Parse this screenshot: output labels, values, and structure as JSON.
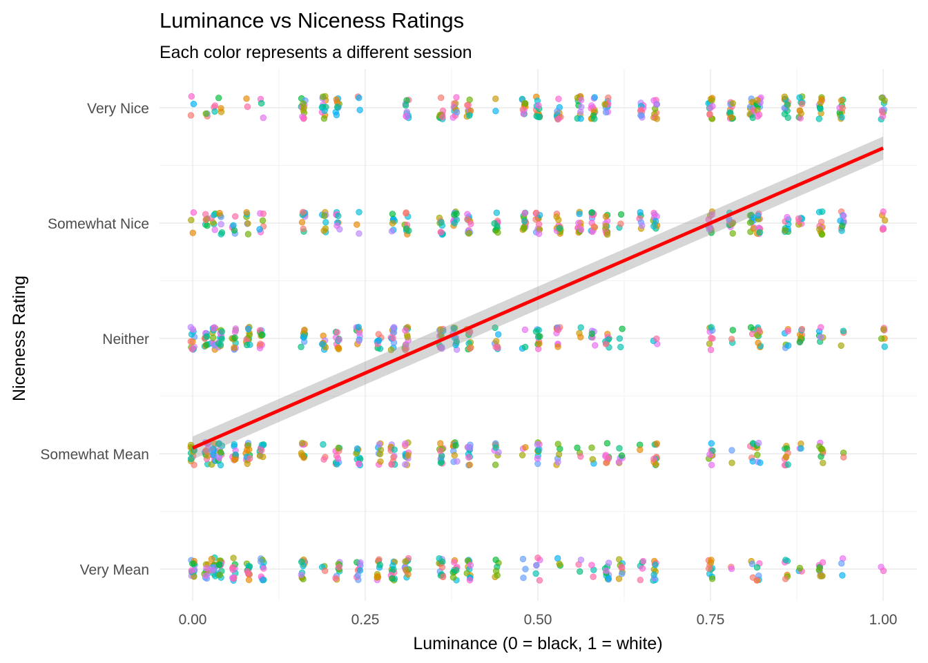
{
  "chart_data": {
    "type": "scatter",
    "title": "Luminance vs Niceness Ratings",
    "subtitle": "Each color represents a different session",
    "xlabel": "Luminance (0 = black, 1 = white)",
    "ylabel": "Niceness Rating",
    "xlim": [
      -0.02,
      1.02
    ],
    "x_ticks": [
      "0.00",
      "0.25",
      "0.50",
      "0.75",
      "1.00"
    ],
    "y_categories": [
      "Very Mean",
      "Somewhat Mean",
      "Neither",
      "Somewhat Nice",
      "Very Nice"
    ],
    "grid": true,
    "point_opacity": 0.65,
    "session_palette": [
      "#F8766D",
      "#E58700",
      "#C99800",
      "#A3A500",
      "#6BB100",
      "#00BA38",
      "#00BF7D",
      "#00C0AF",
      "#00BCD8",
      "#00B0F6",
      "#619CFF",
      "#B983FF",
      "#E76BF3",
      "#FD61D1",
      "#FF67A4"
    ],
    "luminance_levels": [
      0.0,
      0.02,
      0.03,
      0.04,
      0.06,
      0.08,
      0.1,
      0.16,
      0.19,
      0.21,
      0.24,
      0.27,
      0.29,
      0.31,
      0.36,
      0.38,
      0.4,
      0.44,
      0.48,
      0.5,
      0.53,
      0.56,
      0.58,
      0.6,
      0.62,
      0.65,
      0.67,
      0.75,
      0.78,
      0.81,
      0.82,
      0.86,
      0.88,
      0.91,
      0.94,
      1.0
    ],
    "points_per_group": {
      "Very Mean": [
        14,
        10,
        12,
        12,
        12,
        12,
        10,
        12,
        3,
        10,
        10,
        10,
        12,
        12,
        12,
        10,
        12,
        6,
        3,
        6,
        3,
        3,
        3,
        10,
        8,
        5,
        10,
        10,
        2,
        3,
        6,
        6,
        3,
        10,
        3,
        2
      ],
      "Somewhat Mean": [
        12,
        12,
        12,
        12,
        12,
        12,
        10,
        10,
        3,
        10,
        10,
        8,
        12,
        12,
        12,
        10,
        12,
        8,
        3,
        10,
        6,
        3,
        3,
        8,
        6,
        2,
        10,
        8,
        2,
        6,
        6,
        10,
        3,
        8,
        2,
        0
      ],
      "Neither": [
        12,
        10,
        12,
        12,
        12,
        12,
        10,
        10,
        8,
        10,
        10,
        8,
        12,
        12,
        12,
        10,
        10,
        8,
        3,
        10,
        10,
        3,
        6,
        8,
        3,
        0,
        3,
        8,
        3,
        3,
        10,
        6,
        10,
        6,
        3,
        6
      ],
      "Somewhat Nice": [
        3,
        6,
        6,
        6,
        6,
        6,
        6,
        10,
        8,
        8,
        3,
        0,
        8,
        10,
        10,
        10,
        12,
        10,
        12,
        12,
        12,
        12,
        12,
        12,
        3,
        6,
        10,
        10,
        10,
        10,
        10,
        10,
        6,
        10,
        10,
        6
      ],
      "Very Nice": [
        3,
        3,
        3,
        3,
        0,
        2,
        3,
        12,
        12,
        10,
        3,
        0,
        0,
        10,
        10,
        10,
        10,
        2,
        12,
        12,
        12,
        12,
        12,
        12,
        0,
        10,
        10,
        12,
        12,
        12,
        12,
        12,
        10,
        10,
        10,
        10
      ]
    },
    "trend": {
      "type": "linear",
      "color": "#FF0000",
      "x": [
        0.0,
        1.0
      ],
      "y": [
        1.05,
        3.65
      ],
      "ci_half_width": [
        0.1,
        0.1
      ]
    }
  }
}
